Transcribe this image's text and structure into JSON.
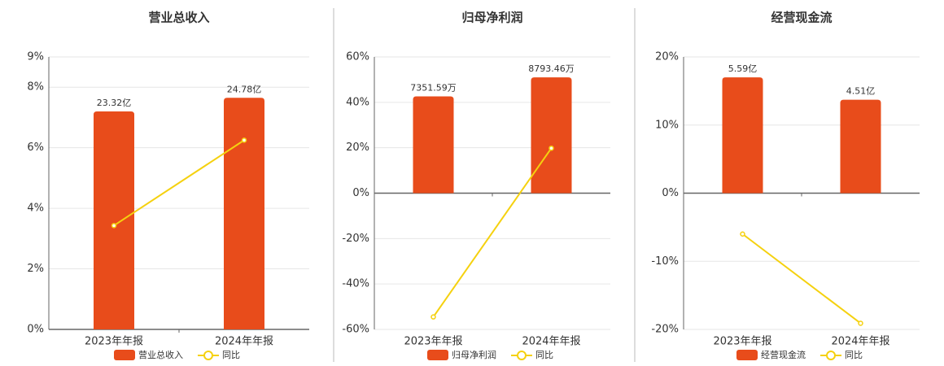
{
  "chart_data": [
    {
      "type": "bar-line",
      "title": "营业总收入",
      "categories": [
        "2023年年报",
        "2024年年报"
      ],
      "series": [
        {
          "name": "营业总收入",
          "type": "bar",
          "color": "#e84c1b",
          "values": [
            23.32,
            24.78
          ],
          "value_labels": [
            "23.32亿",
            "24.78亿"
          ]
        },
        {
          "name": "同比",
          "type": "line",
          "color": "#f5d10f",
          "values": [
            3.43,
            6.25
          ]
        }
      ],
      "ylim": [
        0,
        9
      ],
      "yticks": [
        {
          "value": 0,
          "label": "0%"
        },
        {
          "value": 2,
          "label": "2%"
        },
        {
          "value": 4,
          "label": "4%"
        },
        {
          "value": 6,
          "label": "6%"
        },
        {
          "value": 8,
          "label": "8%"
        },
        {
          "value": 9,
          "label": "9%"
        }
      ],
      "grid": true
    },
    {
      "type": "bar-line",
      "title": "归母净利润",
      "categories": [
        "2023年年报",
        "2024年年报"
      ],
      "series": [
        {
          "name": "归母净利润",
          "type": "bar",
          "color": "#e84c1b",
          "values": [
            7351.59,
            8793.46
          ],
          "value_labels": [
            "7351.59万",
            "8793.46万"
          ]
        },
        {
          "name": "同比",
          "type": "line",
          "color": "#f5d10f",
          "values": [
            -54.5,
            19.8
          ]
        }
      ],
      "ylim": [
        -60,
        60
      ],
      "yticks": [
        {
          "value": -60,
          "label": "-60%"
        },
        {
          "value": -40,
          "label": "-40%"
        },
        {
          "value": -20,
          "label": "-20%"
        },
        {
          "value": 0,
          "label": "0%"
        },
        {
          "value": 20,
          "label": "20%"
        },
        {
          "value": 40,
          "label": "40%"
        },
        {
          "value": 60,
          "label": "60%"
        }
      ],
      "grid": true
    },
    {
      "type": "bar-line",
      "title": "经营现金流",
      "categories": [
        "2023年年报",
        "2024年年报"
      ],
      "series": [
        {
          "name": "经营现金流",
          "type": "bar",
          "color": "#e84c1b",
          "values": [
            5.59,
            4.51
          ],
          "value_labels": [
            "5.59亿",
            "4.51亿"
          ]
        },
        {
          "name": "同比",
          "type": "line",
          "color": "#f5d10f",
          "values": [
            -6.0,
            -19.1
          ]
        }
      ],
      "ylim": [
        -20,
        20
      ],
      "yticks": [
        {
          "value": -20,
          "label": "-20%"
        },
        {
          "value": -10,
          "label": "-10%"
        },
        {
          "value": 0,
          "label": "0%"
        },
        {
          "value": 10,
          "label": "10%"
        },
        {
          "value": 20,
          "label": "20%"
        }
      ],
      "grid": true
    }
  ]
}
